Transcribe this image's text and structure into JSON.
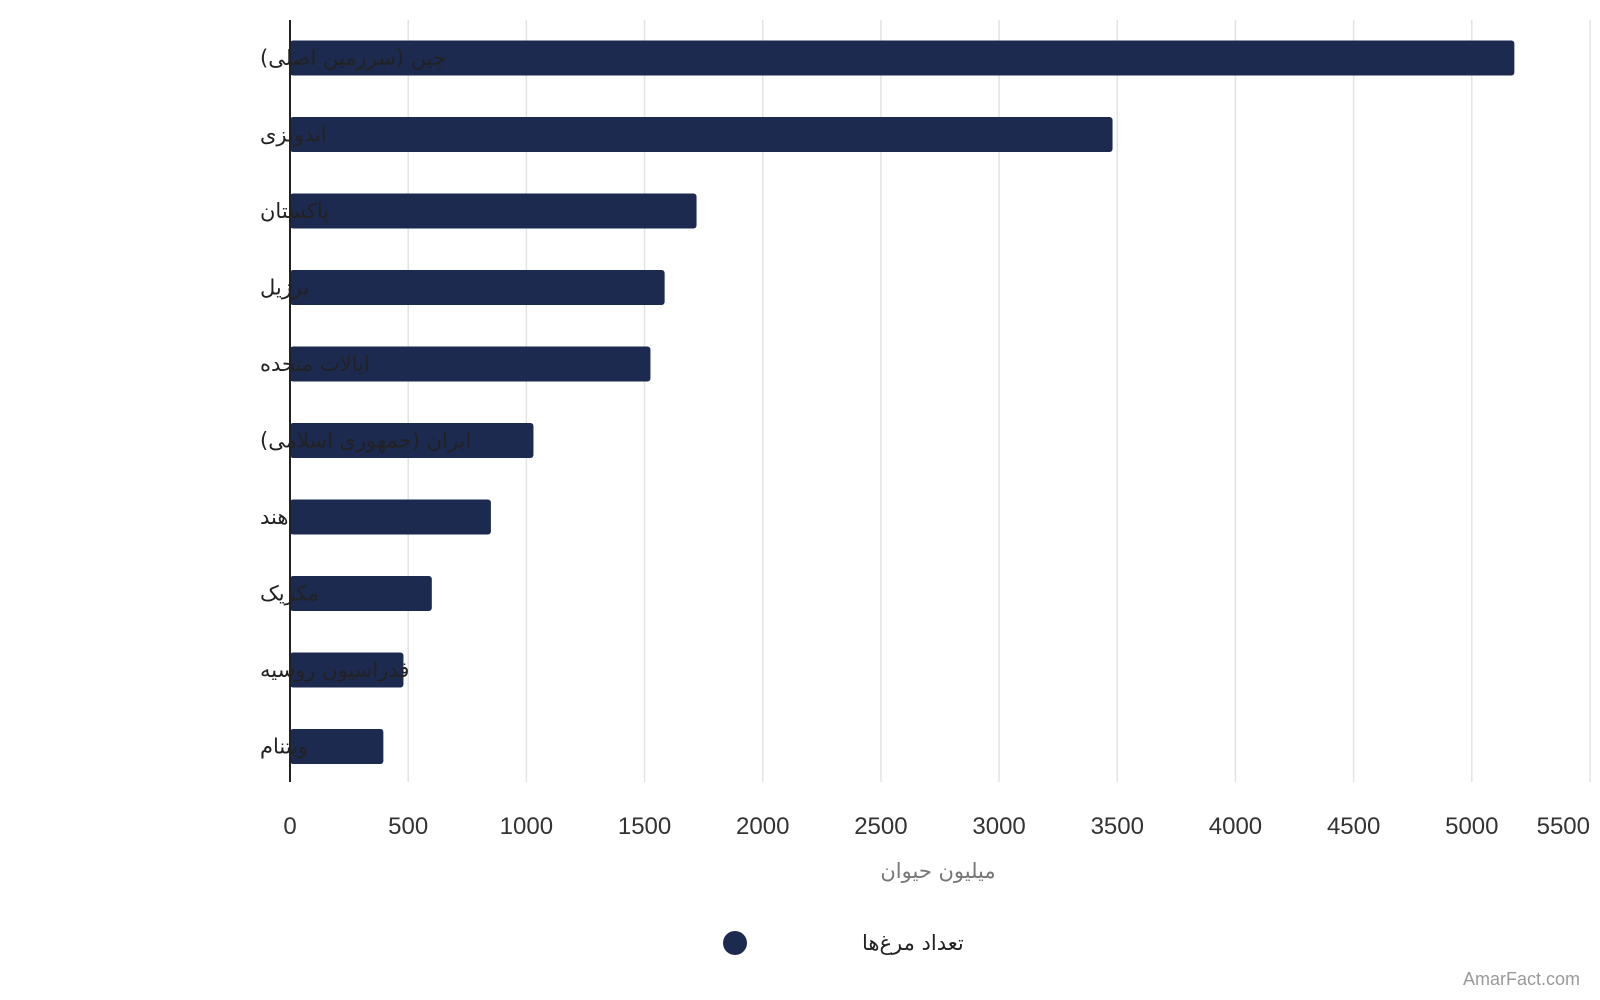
{
  "chart_data": {
    "type": "bar",
    "orientation": "horizontal",
    "categories": [
      "چین (سرزمین اصلی)",
      "اندونزی",
      "پاکستان",
      "برزیل",
      "ایالات متحده",
      "ایران (جمهوری اسلامی)",
      "هند",
      "مکزیک",
      "فدراسیون روسیه",
      "ویتنام"
    ],
    "series": [
      {
        "name": "تعداد مرغ‌ها",
        "values": [
          5180,
          3480,
          1720,
          1585,
          1525,
          1030,
          850,
          600,
          480,
          395
        ],
        "color": "#1c2a4f"
      }
    ],
    "xlabel": "میلیون حیوان",
    "ylabel": "",
    "xlim": [
      0,
      5500
    ],
    "xticks": [
      0,
      500,
      1000,
      1500,
      2000,
      2500,
      3000,
      3500,
      4000,
      4500,
      5000,
      5500
    ],
    "grid": "vertical",
    "legend_position": "bottom"
  },
  "watermark": "AmarFact.com"
}
